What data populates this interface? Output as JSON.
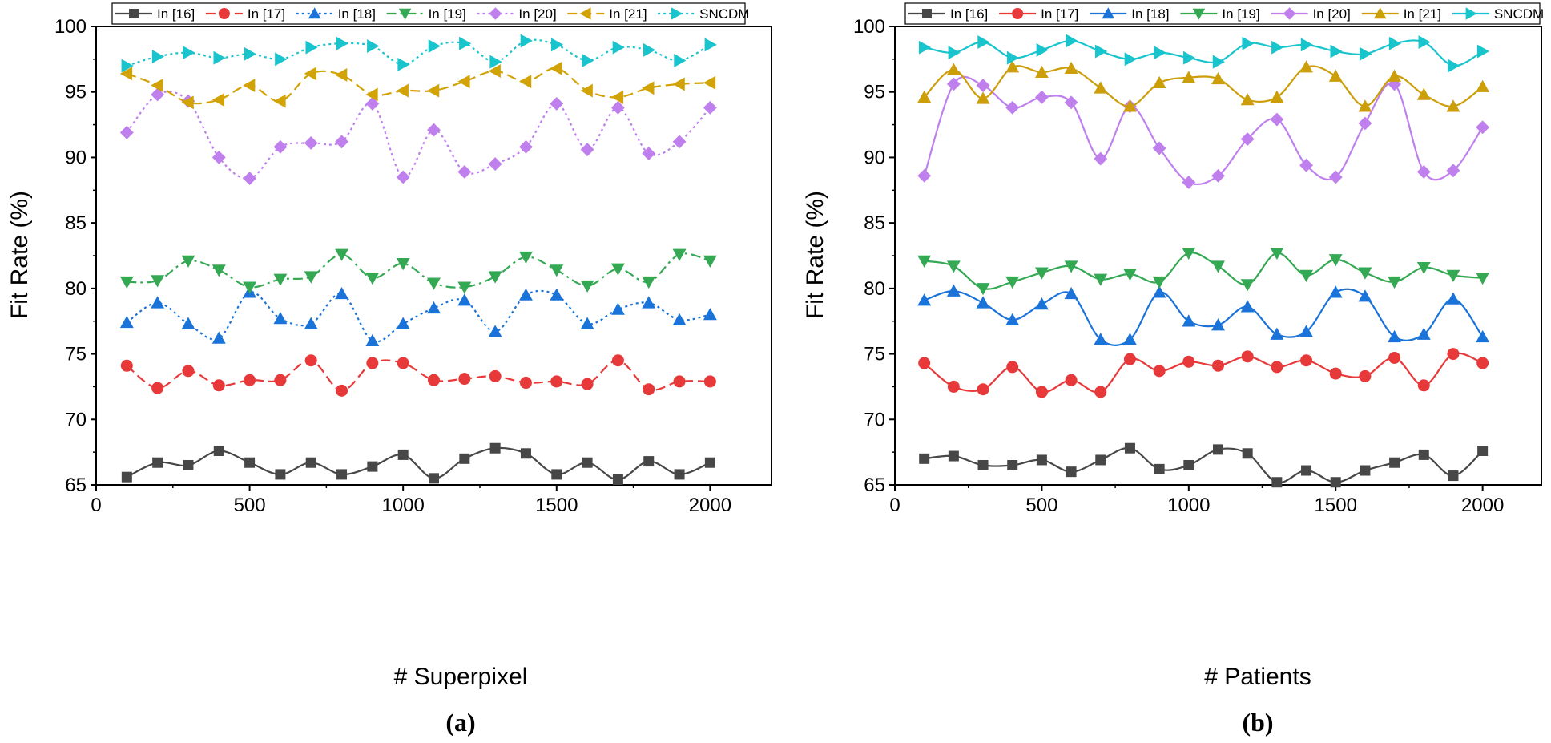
{
  "chart_data": [
    {
      "type": "line",
      "panel_label": "(a)",
      "xlabel": "# Superpixel",
      "ylabel": "Fit Rate (%)",
      "xlim": [
        0,
        2200
      ],
      "ylim": [
        65,
        100
      ],
      "x_ticks": [
        0,
        500,
        1000,
        1500,
        2000
      ],
      "y_ticks": [
        65,
        70,
        75,
        80,
        85,
        90,
        95,
        100
      ],
      "legend_position": "top",
      "x": [
        100,
        200,
        300,
        400,
        500,
        600,
        700,
        800,
        900,
        1000,
        1100,
        1200,
        1300,
        1400,
        1500,
        1600,
        1700,
        1800,
        1900,
        2000
      ],
      "series": [
        {
          "name": "In [16]",
          "color": "#474747",
          "marker": "square",
          "line_style": "solid",
          "values": [
            65.6,
            66.7,
            66.5,
            67.6,
            66.7,
            65.8,
            66.7,
            65.8,
            66.4,
            67.3,
            65.5,
            67.0,
            67.8,
            67.4,
            65.8,
            66.7,
            65.4,
            66.8,
            65.8,
            66.7
          ]
        },
        {
          "name": "In [17]",
          "color": "#e8393a",
          "marker": "circle",
          "line_style": "dashed",
          "values": [
            74.1,
            72.4,
            73.7,
            72.6,
            73.0,
            73.0,
            74.5,
            72.2,
            74.3,
            74.3,
            73.0,
            73.1,
            73.3,
            72.8,
            72.9,
            72.7,
            74.5,
            72.3,
            72.9,
            72.9
          ]
        },
        {
          "name": "In [18]",
          "color": "#1a73d9",
          "marker": "triangle",
          "line_style": "dotted",
          "values": [
            77.4,
            78.9,
            77.3,
            76.2,
            79.7,
            77.7,
            77.3,
            79.6,
            76.0,
            77.3,
            78.5,
            79.1,
            76.7,
            79.5,
            79.5,
            77.3,
            78.4,
            78.9,
            77.6,
            78.0
          ]
        },
        {
          "name": "In [19]",
          "color": "#35a854",
          "marker": "triangle-down",
          "line_style": "dashdot",
          "values": [
            80.5,
            80.6,
            82.1,
            81.4,
            80.1,
            80.7,
            80.9,
            82.6,
            80.8,
            81.9,
            80.4,
            80.1,
            80.9,
            82.4,
            81.4,
            80.2,
            81.5,
            80.5,
            82.6,
            82.1
          ]
        },
        {
          "name": "In [20]",
          "color": "#bf80ed",
          "marker": "diamond",
          "line_style": "dotted",
          "values": [
            91.9,
            94.8,
            94.3,
            90.0,
            88.4,
            90.8,
            91.1,
            91.2,
            94.1,
            88.5,
            92.1,
            88.9,
            89.5,
            90.8,
            94.1,
            90.6,
            93.8,
            90.3,
            91.2,
            93.8
          ]
        },
        {
          "name": "In [21]",
          "color": "#d1a307",
          "marker": "triangle-left",
          "line_style": "dashed",
          "values": [
            96.4,
            95.5,
            94.2,
            94.4,
            95.5,
            94.3,
            96.4,
            96.3,
            94.8,
            95.1,
            95.1,
            95.8,
            96.6,
            95.8,
            96.8,
            95.1,
            94.6,
            95.3,
            95.6,
            95.7
          ]
        },
        {
          "name": "SNCDM",
          "color": "#19c4cc",
          "marker": "triangle-right",
          "line_style": "dotted",
          "values": [
            97.0,
            97.7,
            98.0,
            97.6,
            97.9,
            97.5,
            98.4,
            98.7,
            98.5,
            97.1,
            98.5,
            98.7,
            97.3,
            98.9,
            98.6,
            97.4,
            98.4,
            98.2,
            97.4,
            98.6
          ]
        }
      ]
    },
    {
      "type": "line",
      "panel_label": "(b)",
      "xlabel": "# Patients",
      "ylabel": "Fit Rate (%)",
      "xlim": [
        0,
        2200
      ],
      "ylim": [
        65,
        100
      ],
      "x_ticks": [
        0,
        500,
        1000,
        1500,
        2000
      ],
      "y_ticks": [
        65,
        70,
        75,
        80,
        85,
        90,
        95,
        100
      ],
      "legend_position": "top",
      "x": [
        100,
        200,
        300,
        400,
        500,
        600,
        700,
        800,
        900,
        1000,
        1100,
        1200,
        1300,
        1400,
        1500,
        1600,
        1700,
        1800,
        1900,
        2000
      ],
      "series": [
        {
          "name": "In [16]",
          "color": "#474747",
          "marker": "square",
          "line_style": "solid",
          "values": [
            67.0,
            67.2,
            66.5,
            66.5,
            66.9,
            66.0,
            66.9,
            67.8,
            66.2,
            66.5,
            67.7,
            67.4,
            65.2,
            66.1,
            65.2,
            66.1,
            66.7,
            67.3,
            65.7,
            67.6
          ]
        },
        {
          "name": "In [17]",
          "color": "#e8393a",
          "marker": "circle",
          "line_style": "solid",
          "values": [
            74.3,
            72.5,
            72.3,
            74.0,
            72.1,
            73.0,
            72.1,
            74.6,
            73.7,
            74.4,
            74.1,
            74.8,
            74.0,
            74.5,
            73.5,
            73.3,
            74.7,
            72.6,
            75.0,
            74.3
          ]
        },
        {
          "name": "In [18]",
          "color": "#1a73d9",
          "marker": "triangle",
          "line_style": "solid",
          "values": [
            79.1,
            79.8,
            78.9,
            77.6,
            78.8,
            79.6,
            76.1,
            76.1,
            79.7,
            77.5,
            77.2,
            78.6,
            76.5,
            76.7,
            79.7,
            79.4,
            76.3,
            76.5,
            79.2,
            76.3
          ]
        },
        {
          "name": "In [19]",
          "color": "#35a854",
          "marker": "triangle-down",
          "line_style": "solid",
          "values": [
            82.1,
            81.7,
            80.0,
            80.5,
            81.2,
            81.7,
            80.7,
            81.1,
            80.5,
            82.7,
            81.7,
            80.3,
            82.7,
            81.0,
            82.2,
            81.2,
            80.5,
            81.6,
            81.0,
            80.8
          ]
        },
        {
          "name": "In [20]",
          "color": "#bf80ed",
          "marker": "diamond",
          "line_style": "solid",
          "values": [
            88.6,
            95.6,
            95.5,
            93.8,
            94.6,
            94.2,
            89.9,
            93.9,
            90.7,
            88.1,
            88.6,
            91.4,
            92.9,
            89.4,
            88.5,
            92.6,
            95.6,
            88.9,
            89.0,
            92.3
          ]
        },
        {
          "name": "In [21]",
          "color": "#cc9e0a",
          "marker": "triangle",
          "line_style": "solid",
          "values": [
            94.6,
            96.7,
            94.5,
            96.9,
            96.5,
            96.8,
            95.3,
            93.9,
            95.7,
            96.1,
            96.0,
            94.4,
            94.6,
            96.9,
            96.2,
            93.9,
            96.2,
            94.8,
            93.9,
            95.4
          ]
        },
        {
          "name": "SNCDM",
          "color": "#19c4cc",
          "marker": "triangle-right",
          "line_style": "solid",
          "values": [
            98.4,
            98.0,
            98.8,
            97.6,
            98.2,
            98.9,
            98.1,
            97.5,
            98.0,
            97.6,
            97.3,
            98.7,
            98.4,
            98.6,
            98.1,
            97.9,
            98.7,
            98.8,
            97.0,
            98.1
          ]
        }
      ]
    }
  ]
}
